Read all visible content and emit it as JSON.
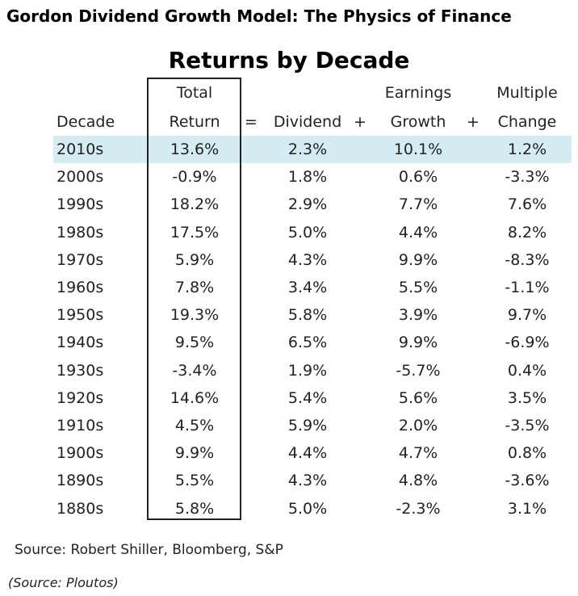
{
  "page": {
    "title": "Gordon Dividend Growth Model: The Physics of Finance",
    "credit": "(Source: Ploutos)"
  },
  "chart_data": {
    "type": "table",
    "title": "Returns by Decade",
    "headers": {
      "decade": "Decade",
      "total_top": "Total",
      "total_bottom": "Return",
      "equals": "=",
      "dividend": "Dividend",
      "plus1": "+",
      "earnings_top": "Earnings",
      "earnings_bottom": "Growth",
      "plus2": "+",
      "multiple_top": "Multiple",
      "multiple_bottom": "Change"
    },
    "rows": [
      {
        "decade": "2010s",
        "total": "13.6%",
        "dividend": "2.3%",
        "earnings": "10.1%",
        "multiple": "1.2%"
      },
      {
        "decade": "2000s",
        "total": "-0.9%",
        "dividend": "1.8%",
        "earnings": "0.6%",
        "multiple": "-3.3%"
      },
      {
        "decade": "1990s",
        "total": "18.2%",
        "dividend": "2.9%",
        "earnings": "7.7%",
        "multiple": "7.6%"
      },
      {
        "decade": "1980s",
        "total": "17.5%",
        "dividend": "5.0%",
        "earnings": "4.4%",
        "multiple": "8.2%"
      },
      {
        "decade": "1970s",
        "total": "5.9%",
        "dividend": "4.3%",
        "earnings": "9.9%",
        "multiple": "-8.3%"
      },
      {
        "decade": "1960s",
        "total": "7.8%",
        "dividend": "3.4%",
        "earnings": "5.5%",
        "multiple": "-1.1%"
      },
      {
        "decade": "1950s",
        "total": "19.3%",
        "dividend": "5.8%",
        "earnings": "3.9%",
        "multiple": "9.7%"
      },
      {
        "decade": "1940s",
        "total": "9.5%",
        "dividend": "6.5%",
        "earnings": "9.9%",
        "multiple": "-6.9%"
      },
      {
        "decade": "1930s",
        "total": "-3.4%",
        "dividend": "1.9%",
        "earnings": "-5.7%",
        "multiple": "0.4%"
      },
      {
        "decade": "1920s",
        "total": "14.6%",
        "dividend": "5.4%",
        "earnings": "5.6%",
        "multiple": "3.5%"
      },
      {
        "decade": "1910s",
        "total": "4.5%",
        "dividend": "5.9%",
        "earnings": "2.0%",
        "multiple": "-3.5%"
      },
      {
        "decade": "1900s",
        "total": "9.9%",
        "dividend": "4.4%",
        "earnings": "4.7%",
        "multiple": "0.8%"
      },
      {
        "decade": "1890s",
        "total": "5.5%",
        "dividend": "4.3%",
        "earnings": "4.8%",
        "multiple": "-3.6%"
      },
      {
        "decade": "1880s",
        "total": "5.8%",
        "dividend": "5.0%",
        "earnings": "-2.3%",
        "multiple": "3.1%"
      }
    ],
    "highlight_color": "#d6ecf4",
    "source": "Source: Robert Shiller, Bloomberg, S&P"
  }
}
